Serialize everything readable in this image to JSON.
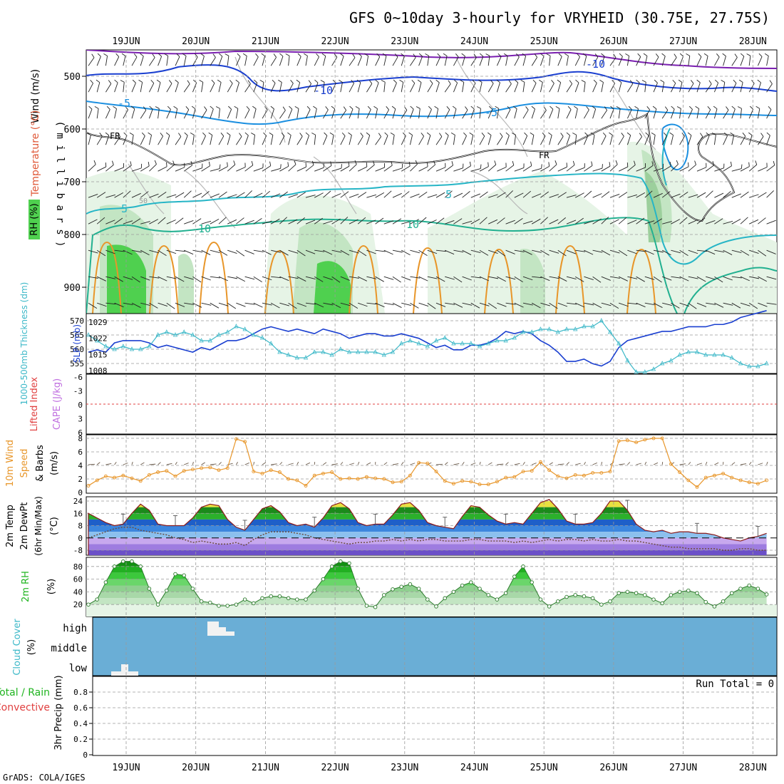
{
  "title": "GFS 0~10day 3-hourly for VRYHEID (30.75E, 27.75S)",
  "credit": "GrADS: COLA/IGES",
  "dates": [
    "19JUN",
    "20JUN",
    "21JUN",
    "22JUN",
    "23JUN",
    "24JUN",
    "25JUN",
    "26JUN",
    "27JUN",
    "28JUN"
  ],
  "colors": {
    "grid": "#9a9a9a",
    "rh_light": "#e6f4e6",
    "rh_mid": "#c3e5c3",
    "rh_green": "#4fd04f",
    "slp": "#1a3fd0",
    "thickness": "#3cb8c8",
    "wind_speed": "#e8962a",
    "temp_fill": "#2a6fd0",
    "rh2m_fill": "#1fb41f",
    "cloud_bg": "#6aaed6",
    "freezing": "#000000"
  },
  "panels": {
    "upper": {
      "axis_title": "RH (%)  Temperature (°C)  Wind (m/s)",
      "axis_rh": "RH (%)",
      "axis_temp": "Temperature (°C)",
      "axis_wind": "Wind (m/s)",
      "axis_unit": "( m i l l i b a r s )",
      "yticks": [
        "500",
        "600",
        "700",
        "800",
        "900"
      ],
      "contour_labels": {
        "m10a": "-10",
        "m10b": "-10",
        "m5a": "-5",
        "m5b": "-5",
        "p5a": "5",
        "p5b": "5",
        "p10a": "10",
        "p10b": "10",
        "fr1": "FR",
        "fr2": "FR",
        "rh50": "50"
      }
    },
    "slp": {
      "label_thick": "1000-500mb Thickness (dm)",
      "label_slp": "SLP (mb)",
      "left_ticks": [
        "570",
        "565",
        "560",
        "555"
      ],
      "right_ticks": [
        "1029",
        "1022",
        "1015",
        "1008"
      ]
    },
    "cape": {
      "label_li": "Lifted Index",
      "label_cape": "CAPE (J/kg)",
      "ticks": [
        "-6",
        "-3",
        "0",
        "3",
        "6"
      ]
    },
    "wind10": {
      "label1": "10m Wind",
      "label2": "Speed",
      "label3": "& Barbs",
      "unit": "(m/s)",
      "ticks": [
        "8",
        "6",
        "4",
        "2",
        "0"
      ]
    },
    "temp": {
      "label1": "2m Temp",
      "label2": "2m DewPt",
      "label3": "(6hr Min/Max)",
      "unit": "(°C)",
      "ticks": [
        "24",
        "16",
        "8",
        "0",
        "-8"
      ]
    },
    "rh2m": {
      "label": "2m RH",
      "unit": "(%)",
      "ticks": [
        "80",
        "60",
        "40",
        "20"
      ]
    },
    "cloud": {
      "label": "Cloud Cover",
      "unit": "(%)",
      "levels": [
        "high",
        "middle",
        "low"
      ]
    },
    "precip": {
      "label1": "Total / Rain",
      "label2": "Convective",
      "label3": "3hr Precip (mm)",
      "run_total": "Run Total = 0",
      "ticks": [
        "0.8",
        "0.6",
        "0.4",
        "0.2",
        "0"
      ]
    }
  },
  "chart_data": [
    {
      "type": "line",
      "title": "Sea level pressure and 1000-500mb thickness",
      "x_start": "18JUN 15Z",
      "x_step_hours": 3,
      "series": [
        {
          "name": "SLP (mb)",
          "values": [
            1016,
            1017,
            1016,
            1020,
            1021,
            1021,
            1021,
            1020,
            1018,
            1019,
            1018,
            1017,
            1016,
            1018,
            1017,
            1019,
            1021,
            1021,
            1022,
            1024,
            1026,
            1027,
            1026,
            1025,
            1026,
            1025,
            1024,
            1026,
            1025,
            1024,
            1022,
            1023,
            1024,
            1024,
            1023,
            1023,
            1024,
            1023,
            1022,
            1020,
            1018,
            1019,
            1017,
            1017,
            1019,
            1019,
            1020,
            1022,
            1025,
            1024,
            1025,
            1024,
            1021,
            1019,
            1016,
            1012,
            1012,
            1013,
            1011,
            1010,
            1012,
            1018,
            1021,
            1022,
            1023,
            1024,
            1025,
            1025,
            1026,
            1027,
            1027,
            1027,
            1028,
            1028,
            1029,
            1031,
            1032,
            1033,
            1034
          ]
        },
        {
          "name": "Thickness (dm)",
          "values": [
            565,
            563,
            561,
            560,
            561,
            560,
            560,
            561,
            565,
            566,
            565,
            566,
            565,
            563,
            563,
            565,
            566,
            568,
            567,
            565,
            564,
            562,
            559,
            558,
            557,
            557,
            559,
            559,
            558,
            560,
            559,
            559,
            559,
            559,
            558,
            559,
            562,
            563,
            562,
            561,
            563,
            564,
            562,
            562,
            562,
            561,
            562,
            563,
            563,
            564,
            566,
            566,
            567,
            567,
            566,
            567,
            567,
            568,
            568,
            570,
            566,
            562,
            556,
            552,
            552,
            553,
            555,
            556,
            558,
            559,
            559,
            558,
            558,
            558,
            557,
            555,
            554,
            554,
            555
          ]
        }
      ]
    },
    {
      "type": "line",
      "title": "10m wind speed",
      "x_start": "18JUN 15Z",
      "x_step_hours": 3,
      "series": [
        {
          "name": "Speed (m/s)",
          "values": [
            1,
            1.8,
            2.4,
            2.2,
            2.5,
            2.1,
            1.7,
            2.6,
            3,
            3.2,
            2.4,
            3.2,
            3.4,
            3.6,
            3.7,
            3.3,
            3.6,
            7.9,
            7.5,
            3.1,
            2.8,
            3.3,
            3,
            2,
            1.8,
            1,
            2.5,
            2.8,
            3,
            2,
            2.1,
            2,
            2.3,
            2.1,
            2,
            1.5,
            1.6,
            2.5,
            4.4,
            4.3,
            3.1,
            1.7,
            1.3,
            1.7,
            1.6,
            1.2,
            1.2,
            1.6,
            2.2,
            2.3,
            3.1,
            3.2,
            4.5,
            3.3,
            2.4,
            2.1,
            2.6,
            2.5,
            2.9,
            2.9,
            3.1,
            7.6,
            7.7,
            7.4,
            7.8,
            8,
            8,
            4.2,
            3,
            1.8,
            0.8,
            2.2,
            2.5,
            2.8,
            2.2,
            1.8,
            1.5,
            1.3,
            1.8
          ]
        }
      ]
    },
    {
      "type": "area",
      "title": "2m temperature and dewpoint",
      "x_start": "18JUN 15Z",
      "x_step_hours": 3,
      "series": [
        {
          "name": "2m Temp (°C)",
          "values": [
            16,
            13,
            10,
            8,
            9,
            16,
            22,
            18,
            9,
            8,
            8,
            8,
            13,
            20,
            22,
            21,
            12,
            7,
            5,
            12,
            19,
            21,
            17,
            10,
            8,
            9,
            7,
            13,
            21,
            23,
            19,
            10,
            8,
            9,
            9,
            15,
            22,
            23,
            18,
            10,
            8,
            7,
            6,
            14,
            21,
            20,
            15,
            11,
            9,
            10,
            9,
            16,
            23,
            25,
            19,
            11,
            9,
            9,
            10,
            16,
            24,
            24,
            18,
            9,
            5,
            4,
            5,
            3,
            4,
            4,
            3,
            3,
            2,
            0,
            -1,
            -2,
            0,
            1,
            3
          ]
        },
        {
          "name": "2m DewPt (°C)",
          "values": [
            0,
            2,
            4,
            6,
            7,
            7,
            5,
            4,
            3,
            2,
            0,
            -1,
            -3,
            -2,
            -3,
            -4,
            -4,
            -3,
            -5,
            -1,
            2,
            4,
            4,
            4,
            3,
            2,
            0,
            -1,
            -2,
            -3,
            -4,
            -3,
            -3,
            -2,
            -2,
            -1,
            -2,
            -1,
            -2,
            -1,
            -1,
            -2,
            -2,
            -2,
            -1,
            -1,
            -2,
            -2,
            -2,
            -3,
            -2,
            -3,
            -2,
            -1,
            -2,
            -1,
            -1,
            -2,
            -1,
            -2,
            -2,
            -1,
            -2,
            -2,
            -3,
            -4,
            -5,
            -6,
            -6,
            -7,
            -7,
            -7,
            -7,
            -8,
            -8,
            -7,
            -7,
            -8,
            -8
          ]
        }
      ]
    },
    {
      "type": "area",
      "title": "2m relative humidity",
      "x_start": "18JUN 15Z",
      "x_step_hours": 3,
      "series": [
        {
          "name": "2m RH (%)",
          "values": [
            20,
            28,
            55,
            80,
            88,
            88,
            80,
            45,
            20,
            42,
            68,
            66,
            45,
            25,
            23,
            18,
            18,
            20,
            28,
            22,
            30,
            33,
            33,
            30,
            28,
            28,
            42,
            60,
            80,
            88,
            85,
            45,
            18,
            16,
            35,
            44,
            48,
            52,
            45,
            28,
            17,
            30,
            40,
            50,
            55,
            45,
            35,
            28,
            38,
            64,
            80,
            55,
            28,
            17,
            25,
            32,
            35,
            33,
            30,
            20,
            25,
            38,
            40,
            38,
            35,
            28,
            22,
            35,
            40,
            42,
            38,
            24,
            17,
            25,
            38,
            45,
            50,
            45,
            36
          ]
        }
      ]
    }
  ]
}
